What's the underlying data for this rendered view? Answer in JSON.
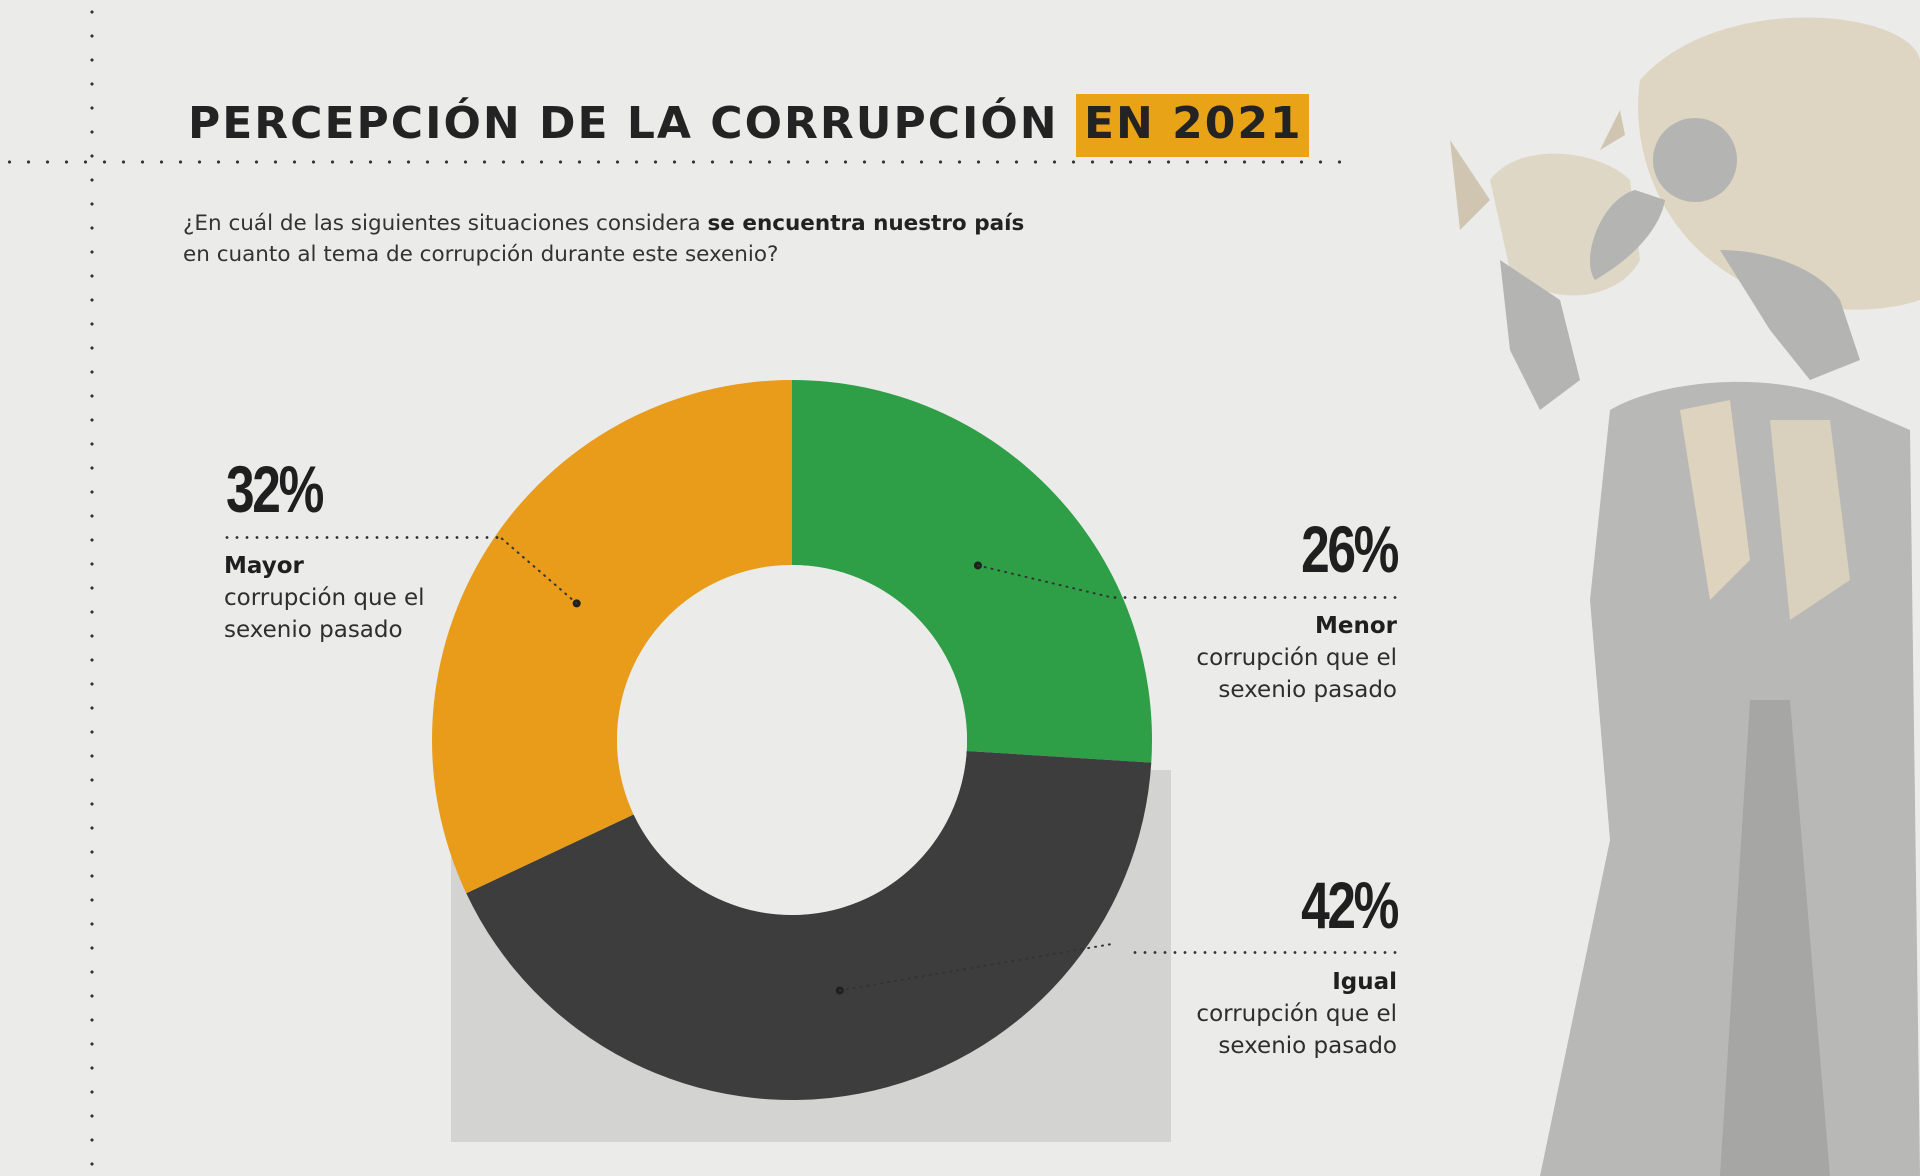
{
  "title": {
    "main": "PERCEPCIÓN DE LA CORRUPCIÓN",
    "highlight": "EN 2021",
    "highlight_color": "#e8a317"
  },
  "question": {
    "part1": "¿En cuál de las siguientes situaciones considera ",
    "bold": "se encuentra nuestro país",
    "part2": "en cuanto al tema de corrupción durante este sexenio?"
  },
  "chart_data": {
    "type": "pie",
    "style": "donut",
    "labels": [
      "Menor corrupción que el sexenio pasado",
      "Igual corrupción que el sexenio pasado",
      "Mayor corrupción que el sexenio pasado"
    ],
    "values": [
      26,
      42,
      32
    ],
    "colors": [
      "#2e9e47",
      "#3d3d3d",
      "#e89c1a"
    ],
    "annotations": [
      {
        "value": "26%",
        "bold": "Menor",
        "rest": "corrupción que el sexenio pasado"
      },
      {
        "value": "42%",
        "bold": "Igual",
        "rest": "corrupción que el sexenio pasado"
      },
      {
        "value": "32%",
        "bold": "Mayor",
        "rest": "corrupción que el sexenio pasado"
      }
    ]
  }
}
